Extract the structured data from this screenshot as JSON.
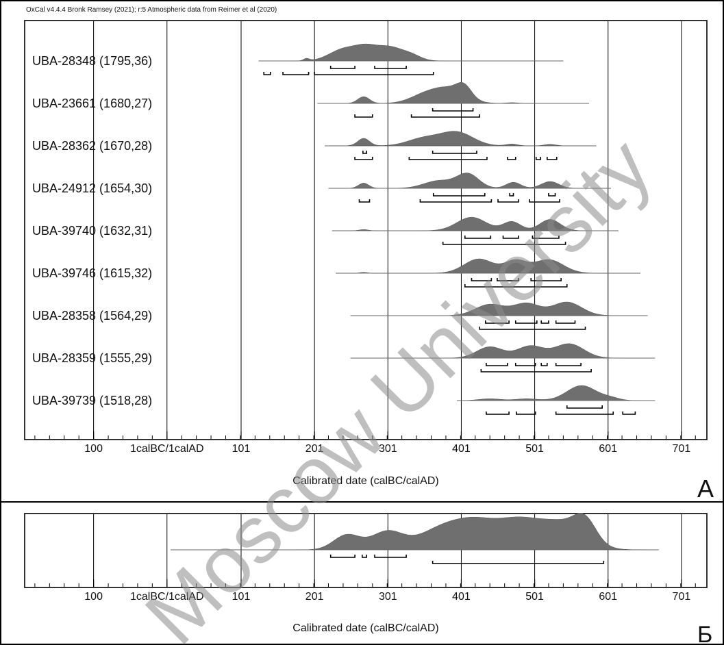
{
  "header_note": "OxCal v4.4.4 Bronk Ramsey (2021); r:5 Atmospheric data from Reimer et al (2020)",
  "watermark": "Moscow University",
  "colors": {
    "density": "#6f6f6f",
    "axis": "#000000",
    "background": "#ffffff",
    "watermark": "#8a8a8a"
  },
  "chart_data": [
    {
      "type": "multiple-plot",
      "panel_letter": "А",
      "xlabel": "Calibrated date (calBC/calAD)",
      "tick_labels": [
        "100",
        "1calBC/1calAD",
        "101",
        "201",
        "301",
        "401",
        "501",
        "601",
        "701"
      ],
      "tick_values": [
        -100,
        0,
        101,
        201,
        301,
        401,
        501,
        601,
        701
      ],
      "xlim": [
        -200,
        735
      ],
      "grid": true,
      "samples": [
        {
          "label": "UBA-28348 (1795,36)",
          "lab_code": "UBA-28348",
          "bp": 1795,
          "error": 36,
          "range": [
            125,
            540
          ],
          "peaks": [
            [
              190,
              4,
              0.15
            ],
            [
              242,
              20,
              0.8
            ],
            [
              270,
              14,
              0.5
            ],
            [
              302,
              22,
              0.95
            ],
            [
              335,
              12,
              0.2
            ]
          ],
          "hpd68": [
            [
              223,
              256
            ],
            [
              283,
              326
            ]
          ],
          "hpd95": [
            [
              132,
              141
            ],
            [
              158,
              193
            ],
            [
              201,
              363
            ]
          ]
        },
        {
          "label": "UBA-23661 (1680,27)",
          "lab_code": "UBA-23661",
          "bp": 1680,
          "error": 27,
          "range": [
            205,
            575
          ],
          "peaks": [
            [
              268,
              8,
              0.45
            ],
            [
              350,
              20,
              0.5
            ],
            [
              385,
              22,
              0.95
            ],
            [
              405,
              10,
              0.7
            ],
            [
              470,
              8,
              0.05
            ]
          ],
          "hpd68": [
            [
              362,
              417
            ]
          ],
          "hpd95": [
            [
              256,
              280
            ],
            [
              333,
              426
            ]
          ]
        },
        {
          "label": "UBA-28362 (1670,28)",
          "lab_code": "UBA-28362",
          "bp": 1670,
          "error": 28,
          "range": [
            215,
            585
          ],
          "peaks": [
            [
              268,
              8,
              0.5
            ],
            [
              350,
              22,
              0.5
            ],
            [
              395,
              22,
              0.9
            ],
            [
              470,
              8,
              0.12
            ],
            [
              522,
              8,
              0.1
            ]
          ],
          "hpd68": [
            [
              267,
              272
            ],
            [
              362,
              422
            ]
          ],
          "hpd95": [
            [
              256,
              280
            ],
            [
              330,
              436
            ],
            [
              464,
              475
            ],
            [
              503,
              509
            ],
            [
              518,
              531
            ]
          ]
        },
        {
          "label": "UBA-24912 (1654,30)",
          "lab_code": "UBA-24912",
          "bp": 1654,
          "error": 30,
          "range": [
            220,
            605
          ],
          "peaks": [
            [
              268,
              7,
              0.35
            ],
            [
              370,
              20,
              0.5
            ],
            [
              410,
              15,
              0.95
            ],
            [
              472,
              10,
              0.4
            ],
            [
              522,
              12,
              0.45
            ]
          ],
          "hpd68": [
            [
              363,
              433
            ],
            [
              467,
              472
            ],
            [
              520,
              529
            ]
          ],
          "hpd95": [
            [
              262,
              276
            ],
            [
              345,
              442
            ],
            [
              451,
              479
            ],
            [
              494,
              535
            ]
          ]
        },
        {
          "label": "UBA-39740 (1632,31)",
          "lab_code": "UBA-39740",
          "bp": 1632,
          "error": 31,
          "range": [
            225,
            615
          ],
          "peaks": [
            [
              268,
              6,
              0.08
            ],
            [
              415,
              20,
              0.9
            ],
            [
              470,
              12,
              0.6
            ],
            [
              522,
              14,
              0.75
            ]
          ],
          "hpd68": [
            [
              406,
              441
            ],
            [
              458,
              479
            ],
            [
              498,
              534
            ]
          ],
          "hpd95": [
            [
              376,
              543
            ]
          ]
        },
        {
          "label": "UBA-39746 (1615,32)",
          "lab_code": "UBA-39746",
          "bp": 1615,
          "error": 32,
          "range": [
            230,
            645
          ],
          "peaks": [
            [
              268,
              5,
              0.06
            ],
            [
              425,
              20,
              0.95
            ],
            [
              475,
              15,
              0.8
            ],
            [
              520,
              20,
              0.9
            ]
          ],
          "hpd68": [
            [
              415,
              442
            ],
            [
              450,
              479
            ],
            [
              496,
              537
            ]
          ],
          "hpd95": [
            [
              406,
              545
            ]
          ]
        },
        {
          "label": "UBA-28358 (1564,29)",
          "lab_code": "UBA-28358",
          "bp": 1564,
          "error": 29,
          "range": [
            250,
            655
          ],
          "peaks": [
            [
              440,
              20,
              0.75
            ],
            [
              490,
              18,
              0.8
            ],
            [
              545,
              20,
              0.9
            ]
          ],
          "hpd68": [
            [
              434,
              466
            ],
            [
              475,
              504
            ],
            [
              510,
              520
            ],
            [
              530,
              556
            ]
          ],
          "hpd95": [
            [
              426,
              570
            ]
          ]
        },
        {
          "label": "UBA-28359 (1555,29)",
          "lab_code": "UBA-28359",
          "bp": 1555,
          "error": 29,
          "range": [
            250,
            665
          ],
          "peaks": [
            [
              440,
              18,
              0.75
            ],
            [
              495,
              18,
              0.8
            ],
            [
              548,
              20,
              0.95
            ]
          ],
          "hpd68": [
            [
              435,
              464
            ],
            [
              475,
              502
            ],
            [
              510,
              518
            ],
            [
              530,
              564
            ]
          ],
          "hpd95": [
            [
              428,
              578
            ]
          ]
        },
        {
          "label": "UBA-39739 (1518,28)",
          "lab_code": "UBA-39739",
          "bp": 1518,
          "error": 28,
          "range": [
            395,
            665
          ],
          "peaks": [
            [
              440,
              15,
              0.12
            ],
            [
              490,
              15,
              0.12
            ],
            [
              565,
              20,
              1.0
            ],
            [
              605,
              12,
              0.15
            ]
          ],
          "hpd68": [
            [
              545,
              593
            ]
          ],
          "hpd95": [
            [
              435,
              466
            ],
            [
              476,
              502
            ],
            [
              530,
              608
            ],
            [
              621,
              638
            ]
          ]
        }
      ]
    },
    {
      "type": "summed-plot",
      "panel_letter": "Б",
      "xlabel": "Calibrated date (calBC/calAD)",
      "tick_labels": [
        "100",
        "1calBC/1calAD",
        "101",
        "201",
        "301",
        "401",
        "501",
        "601",
        "701"
      ],
      "tick_values": [
        -100,
        0,
        101,
        201,
        301,
        401,
        501,
        601,
        701
      ],
      "xlim": [
        -200,
        735
      ],
      "grid": true,
      "range": [
        5,
        670
      ],
      "peaks": [
        [
          245,
          18,
          0.45
        ],
        [
          300,
          22,
          0.55
        ],
        [
          370,
          30,
          0.55
        ],
        [
          420,
          30,
          0.75
        ],
        [
          480,
          30,
          0.8
        ],
        [
          540,
          30,
          0.75
        ],
        [
          570,
          15,
          0.6
        ]
      ],
      "hpd68": [
        [
          223,
          256
        ],
        [
          266,
          272
        ],
        [
          283,
          326
        ]
      ],
      "hpd95": [
        [
          362,
          595
        ]
      ]
    }
  ]
}
